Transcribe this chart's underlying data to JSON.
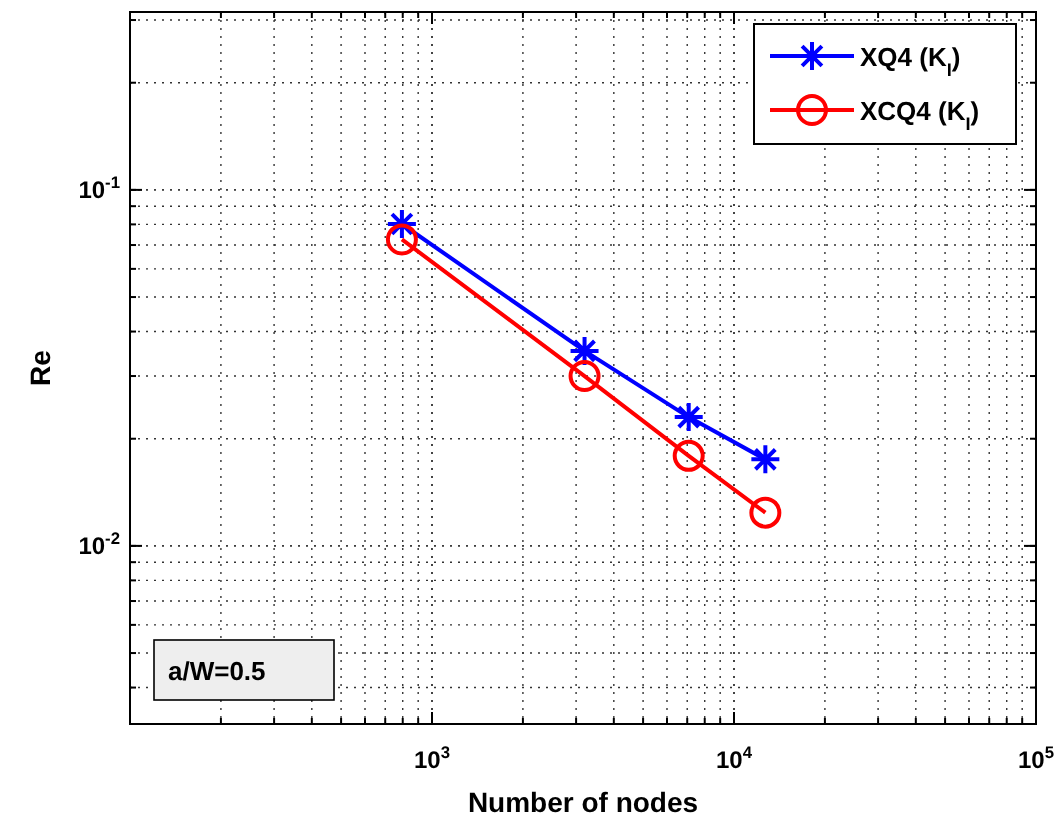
{
  "chart_data": {
    "type": "line",
    "xlabel": "Number of nodes",
    "ylabel": "Re",
    "log": "xy",
    "grid": true,
    "legend": "top right",
    "xlim": [
      100,
      100000
    ],
    "xticks": [
      {
        "value": 1000,
        "label": "10$^{3}$"
      },
      {
        "value": 10000,
        "label": "10$^{4}$"
      },
      {
        "value": 100000,
        "label": "10$^{5}$"
      }
    ],
    "ylim": [
      0.00316,
      0.316
    ],
    "yticks": [
      {
        "value": 0.01,
        "label": "10$^{-2}$"
      },
      {
        "value": 0.1,
        "label": "10$^{-1}$"
      }
    ],
    "x": [
      795,
      3200,
      7080,
      12700
    ],
    "series": [
      {
        "name": "XQ4 (K$_{I}$)",
        "color": "#0000ff",
        "marker": "cross",
        "values": [
          0.0802,
          0.0353,
          0.023,
          0.0175
        ]
      },
      {
        "name": "XCQ4 (K$_{I}$)",
        "color": "#ff0000",
        "marker": "circle",
        "values": [
          0.0726,
          0.03,
          0.0179,
          0.0124
        ]
      }
    ],
    "annotations": [
      "a/W=0.5"
    ]
  }
}
